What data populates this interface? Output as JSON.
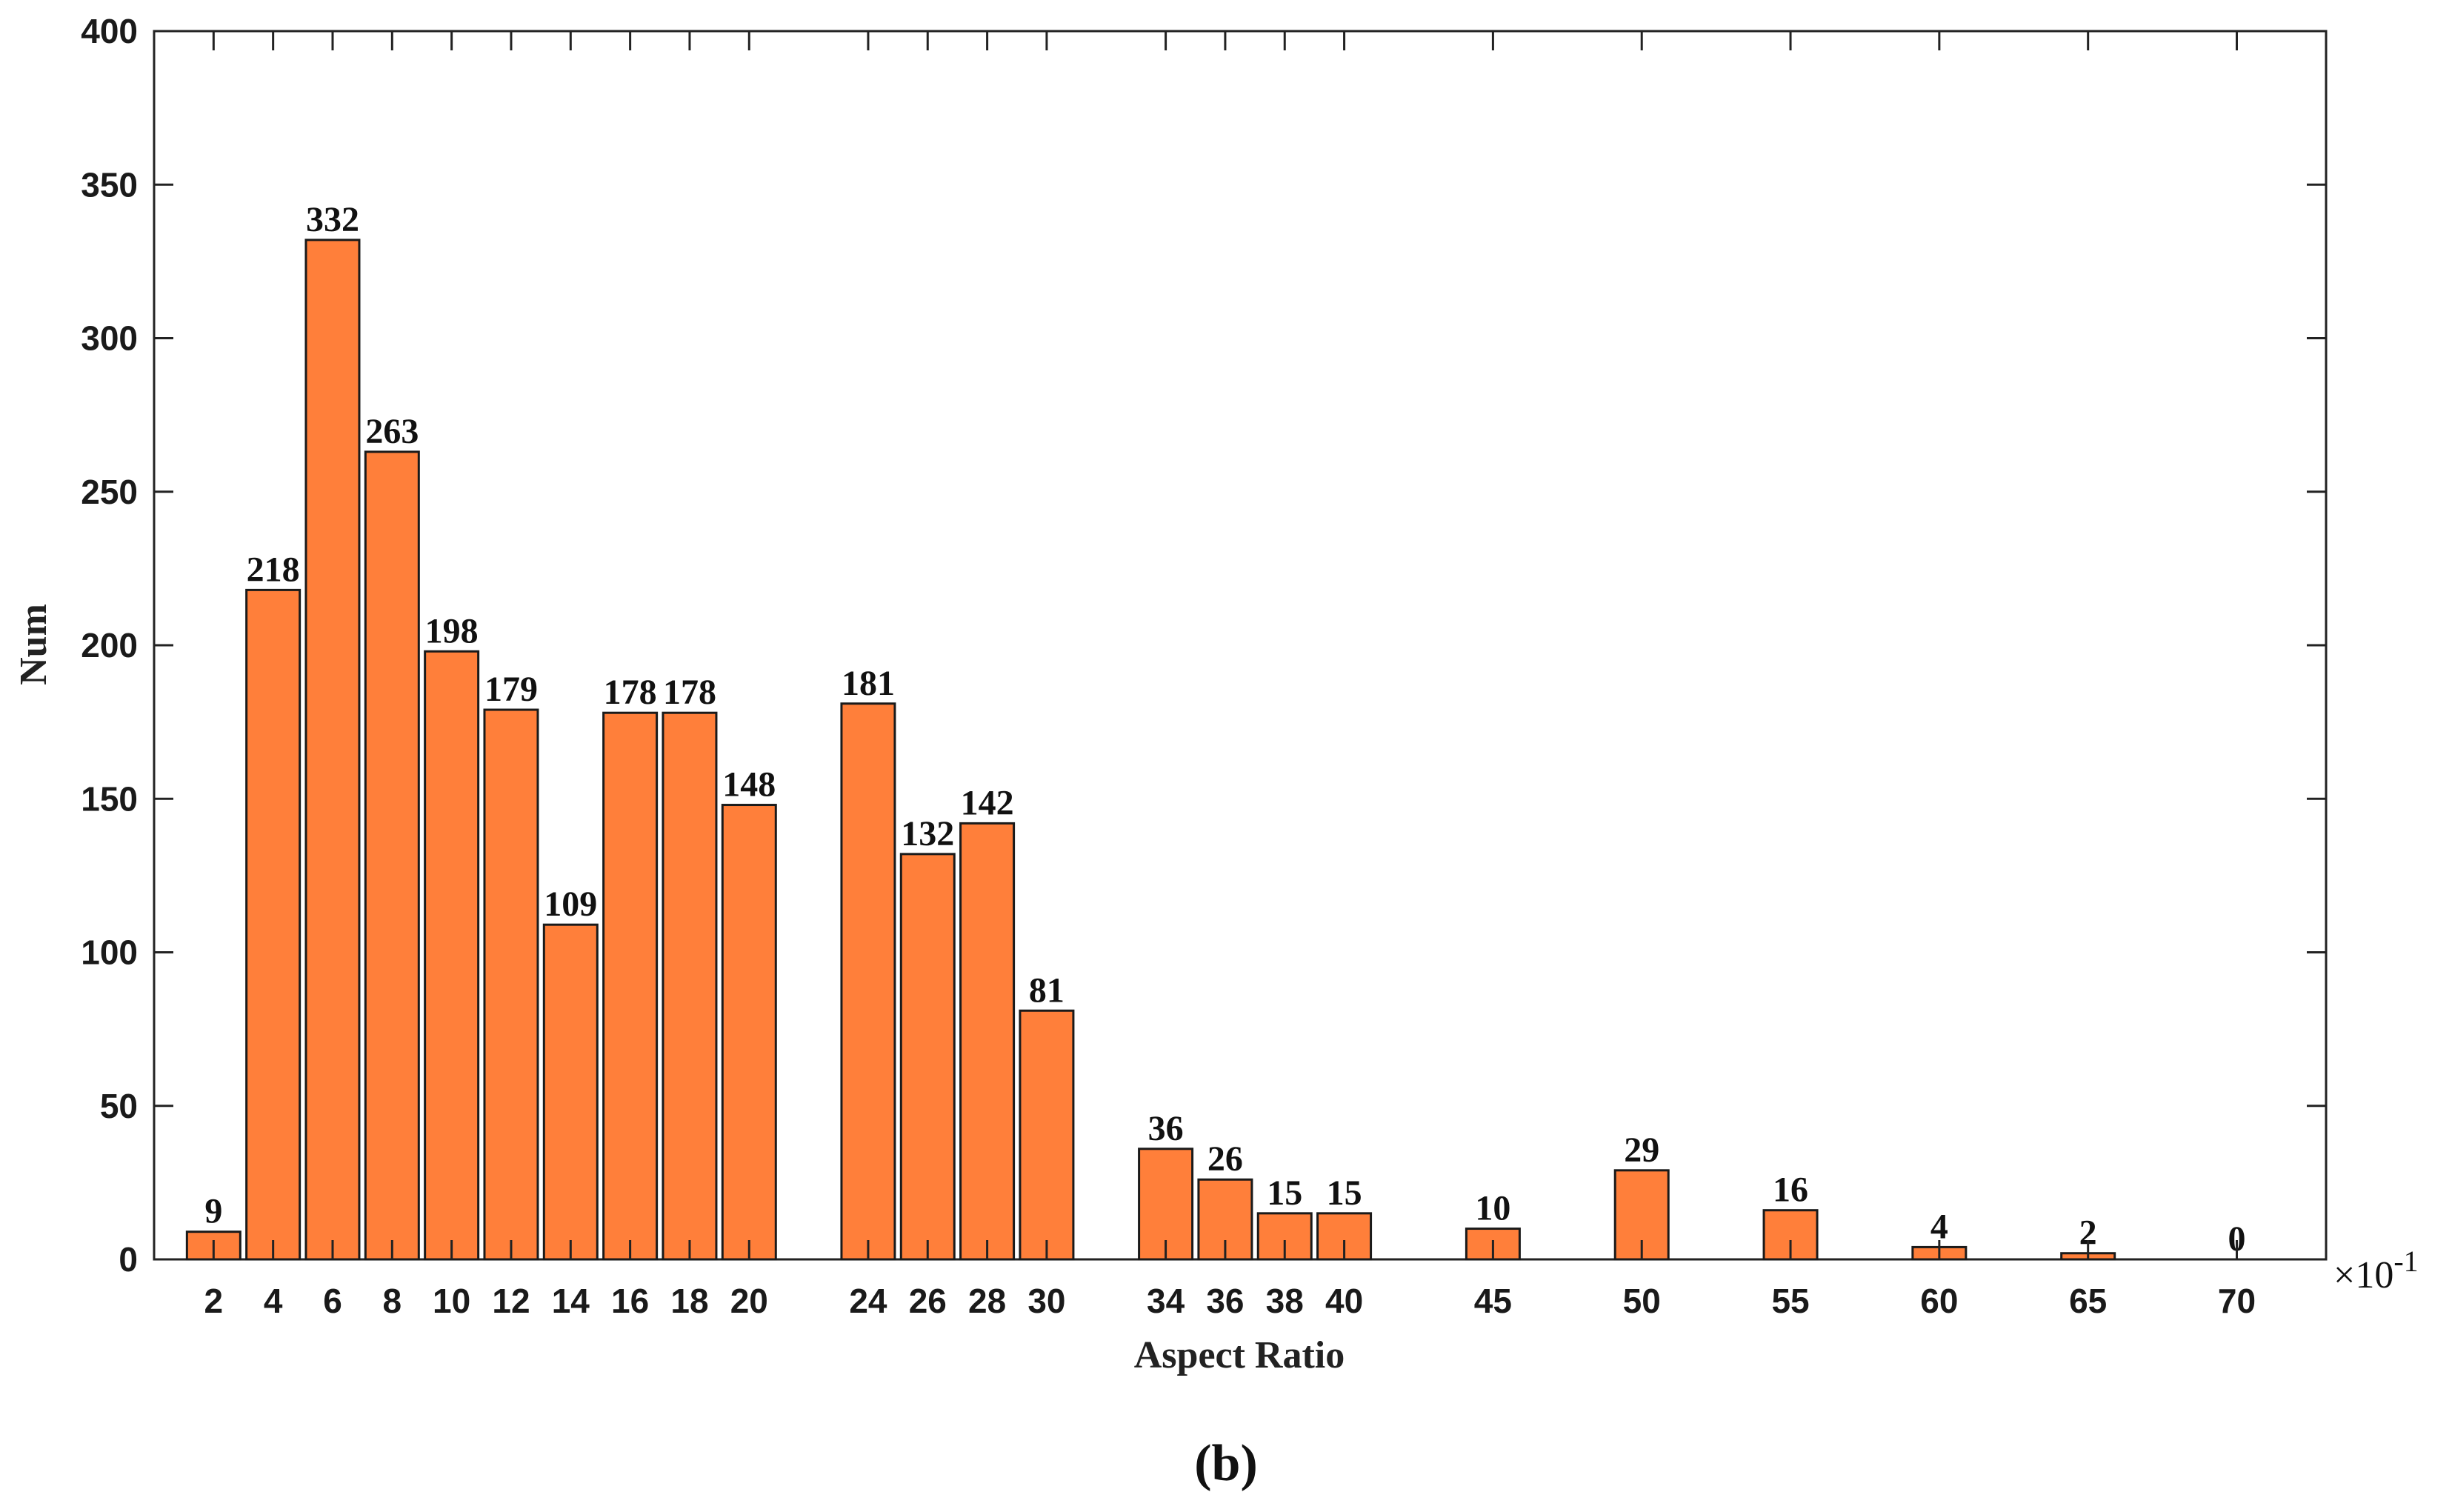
{
  "chart_data": {
    "type": "bar",
    "categories": [
      "2",
      "4",
      "6",
      "8",
      "10",
      "12",
      "14",
      "16",
      "18",
      "20",
      "24",
      "26",
      "28",
      "30",
      "34",
      "36",
      "38",
      "40",
      "45",
      "50",
      "55",
      "60",
      "65",
      "70"
    ],
    "x": [
      2,
      4,
      6,
      8,
      10,
      12,
      14,
      16,
      18,
      20,
      24,
      26,
      28,
      30,
      34,
      36,
      38,
      40,
      45,
      50,
      55,
      60,
      65,
      70
    ],
    "values": [
      9,
      218,
      332,
      263,
      198,
      179,
      109,
      178,
      178,
      148,
      181,
      132,
      142,
      81,
      36,
      26,
      15,
      15,
      10,
      29,
      16,
      4,
      2,
      0
    ],
    "xlabel": "Aspect Ratio",
    "ylabel": "Num",
    "x_scale_label": "×10",
    "x_scale_exponent": "-1",
    "ylim": [
      0,
      400
    ],
    "yticks": [
      0,
      50,
      100,
      150,
      200,
      250,
      300,
      350,
      400
    ],
    "xlim": [
      0,
      73
    ],
    "bar_color": "#ff7f3a",
    "grid": false,
    "caption": "(b)"
  }
}
